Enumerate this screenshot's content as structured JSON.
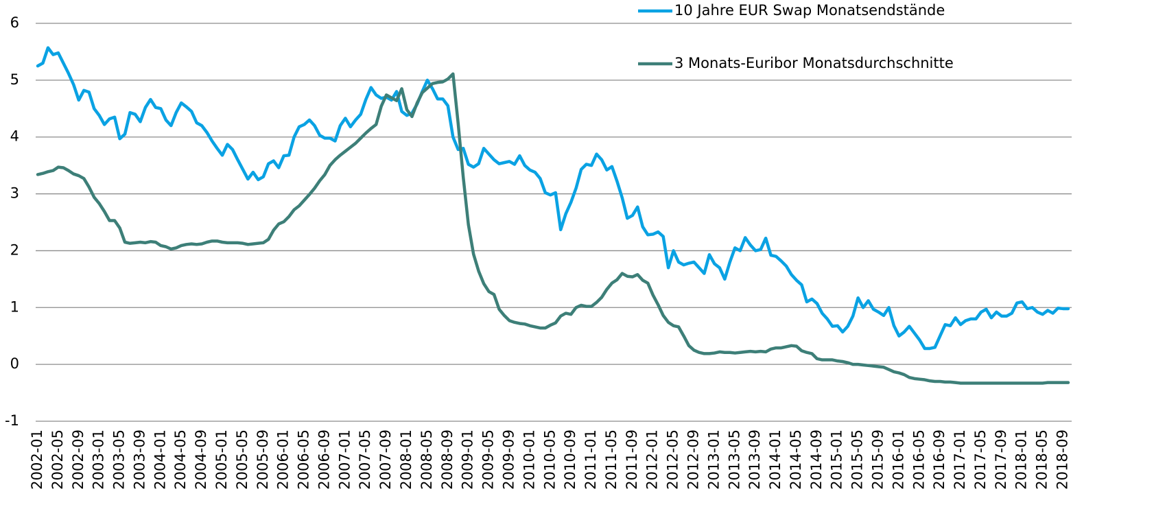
{
  "chart_data": {
    "type": "line",
    "categories": [
      "2002-01",
      null,
      null,
      null,
      "2002-05",
      null,
      null,
      null,
      "2002-09",
      null,
      null,
      null,
      "2003-01",
      null,
      null,
      null,
      "2003-05",
      null,
      null,
      null,
      "2003-09",
      null,
      null,
      null,
      "2004-01",
      null,
      null,
      null,
      "2004-05",
      null,
      null,
      null,
      "2004-09",
      null,
      null,
      null,
      "2005-01",
      null,
      null,
      null,
      "2005-05",
      null,
      null,
      null,
      "2005-09",
      null,
      null,
      null,
      "2006-01",
      null,
      null,
      null,
      "2006-05",
      null,
      null,
      null,
      "2006-09",
      null,
      null,
      null,
      "2007-01",
      null,
      null,
      null,
      "2007-05",
      null,
      null,
      null,
      "2007-09",
      null,
      null,
      null,
      "2008-01",
      null,
      null,
      null,
      "2008-05",
      null,
      null,
      null,
      "2008-09",
      null,
      null,
      null,
      "2009-01",
      null,
      null,
      null,
      "2009-05",
      null,
      null,
      null,
      "2009-09",
      null,
      null,
      null,
      "2010-01",
      null,
      null,
      null,
      "2010-05",
      null,
      null,
      null,
      "2010-09",
      null,
      null,
      null,
      "2011-01",
      null,
      null,
      null,
      "2011-05",
      null,
      null,
      null,
      "2011-09",
      null,
      null,
      null,
      "2012-01",
      null,
      null,
      null,
      "2012-05",
      null,
      null,
      null,
      "2012-09",
      null,
      null,
      null,
      "2013-01",
      null,
      null,
      null,
      "2013-05",
      null,
      null,
      null,
      "2013-09",
      null,
      null,
      null,
      "2014-01",
      null,
      null,
      null,
      "2014-05",
      null,
      null,
      null,
      "2014-09",
      null,
      null,
      null,
      "2015-01",
      null,
      null,
      null,
      "2015-05",
      null,
      null,
      null,
      "2015-09",
      null,
      null,
      null,
      "2016-01",
      null,
      null,
      null,
      "2016-05",
      null,
      null,
      null,
      "2016-09",
      null,
      null,
      null,
      "2017-01",
      null,
      null,
      null,
      "2017-05",
      null,
      null,
      null,
      "2017-09",
      null,
      null,
      null,
      "2018-01",
      null,
      null,
      null,
      "2018-05",
      null,
      null,
      null,
      "2018-09",
      null
    ],
    "series": [
      {
        "name": "10 Jahre EUR Swap Monatsendstände",
        "color": "#0aa2e3",
        "values": [
          5.25,
          5.3,
          5.57,
          5.45,
          5.48,
          5.3,
          5.12,
          4.92,
          4.65,
          4.82,
          4.79,
          4.5,
          4.38,
          4.22,
          4.32,
          4.35,
          3.97,
          4.05,
          4.43,
          4.4,
          4.27,
          4.52,
          4.66,
          4.52,
          4.5,
          4.3,
          4.2,
          4.43,
          4.6,
          4.53,
          4.45,
          4.25,
          4.2,
          4.08,
          3.93,
          3.8,
          3.68,
          3.87,
          3.78,
          3.6,
          3.43,
          3.26,
          3.38,
          3.25,
          3.3,
          3.53,
          3.58,
          3.46,
          3.67,
          3.68,
          4.0,
          4.18,
          4.22,
          4.3,
          4.2,
          4.03,
          3.98,
          3.98,
          3.93,
          4.2,
          4.33,
          4.18,
          4.3,
          4.4,
          4.66,
          4.87,
          4.74,
          4.68,
          4.7,
          4.65,
          4.8,
          4.45,
          4.38,
          4.42,
          4.58,
          4.8,
          5.0,
          4.85,
          4.67,
          4.67,
          4.55,
          4.0,
          3.78,
          3.8,
          3.52,
          3.47,
          3.53,
          3.8,
          3.7,
          3.6,
          3.53,
          3.55,
          3.57,
          3.52,
          3.67,
          3.5,
          3.42,
          3.38,
          3.27,
          3.02,
          2.98,
          3.02,
          2.37,
          2.65,
          2.85,
          3.1,
          3.43,
          3.52,
          3.5,
          3.7,
          3.6,
          3.42,
          3.48,
          3.22,
          2.93,
          2.57,
          2.62,
          2.77,
          2.42,
          2.28,
          2.29,
          2.33,
          2.25,
          1.7,
          2.0,
          1.8,
          1.75,
          1.78,
          1.8,
          1.7,
          1.6,
          1.93,
          1.77,
          1.7,
          1.5,
          1.8,
          2.05,
          2.0,
          2.23,
          2.1,
          2.0,
          2.02,
          2.22,
          1.92,
          1.9,
          1.82,
          1.73,
          1.58,
          1.48,
          1.4,
          1.1,
          1.15,
          1.07,
          0.9,
          0.8,
          0.67,
          0.68,
          0.57,
          0.67,
          0.85,
          1.17,
          1.0,
          1.12,
          0.97,
          0.92,
          0.86,
          1.0,
          0.68,
          0.5,
          0.57,
          0.67,
          0.55,
          0.43,
          0.28,
          0.28,
          0.3,
          0.5,
          0.7,
          0.68,
          0.82,
          0.7,
          0.77,
          0.8,
          0.8,
          0.92,
          0.97,
          0.82,
          0.92,
          0.85,
          0.85,
          0.9,
          1.08,
          1.1,
          0.98,
          1.0,
          0.92,
          0.88,
          0.95,
          0.9,
          0.99,
          0.98,
          0.98
        ]
      },
      {
        "name": "3 Monats-Euribor Monatsdurchschnitte",
        "color": "#3d7f78",
        "values": [
          3.34,
          3.36,
          3.39,
          3.41,
          3.47,
          3.46,
          3.41,
          3.35,
          3.32,
          3.27,
          3.12,
          2.94,
          2.83,
          2.69,
          2.53,
          2.53,
          2.4,
          2.15,
          2.13,
          2.14,
          2.15,
          2.14,
          2.16,
          2.15,
          2.09,
          2.07,
          2.03,
          2.05,
          2.09,
          2.11,
          2.12,
          2.11,
          2.12,
          2.15,
          2.17,
          2.17,
          2.15,
          2.14,
          2.14,
          2.14,
          2.13,
          2.11,
          2.12,
          2.13,
          2.14,
          2.2,
          2.36,
          2.47,
          2.51,
          2.6,
          2.72,
          2.79,
          2.89,
          2.99,
          3.1,
          3.23,
          3.34,
          3.5,
          3.6,
          3.68,
          3.75,
          3.82,
          3.89,
          3.98,
          4.07,
          4.15,
          4.22,
          4.54,
          4.74,
          4.69,
          4.64,
          4.85,
          4.48,
          4.36,
          4.6,
          4.78,
          4.86,
          4.94,
          4.96,
          4.97,
          5.02,
          5.11,
          4.24,
          3.29,
          2.46,
          1.94,
          1.64,
          1.42,
          1.28,
          1.23,
          0.97,
          0.86,
          0.77,
          0.74,
          0.72,
          0.71,
          0.68,
          0.66,
          0.64,
          0.64,
          0.69,
          0.73,
          0.85,
          0.9,
          0.88,
          1.0,
          1.04,
          1.02,
          1.02,
          1.09,
          1.18,
          1.32,
          1.43,
          1.49,
          1.6,
          1.55,
          1.54,
          1.58,
          1.48,
          1.43,
          1.22,
          1.05,
          0.86,
          0.74,
          0.68,
          0.66,
          0.5,
          0.33,
          0.25,
          0.21,
          0.19,
          0.19,
          0.2,
          0.22,
          0.21,
          0.21,
          0.2,
          0.21,
          0.22,
          0.23,
          0.22,
          0.23,
          0.22,
          0.27,
          0.29,
          0.29,
          0.31,
          0.33,
          0.32,
          0.24,
          0.21,
          0.19,
          0.1,
          0.08,
          0.08,
          0.08,
          0.06,
          0.05,
          0.03,
          0.0,
          0.0,
          -0.01,
          -0.02,
          -0.03,
          -0.04,
          -0.05,
          -0.09,
          -0.13,
          -0.15,
          -0.18,
          -0.23,
          -0.25,
          -0.26,
          -0.27,
          -0.29,
          -0.3,
          -0.3,
          -0.31,
          -0.31,
          -0.32,
          -0.33,
          -0.33,
          -0.33,
          -0.33,
          -0.33,
          -0.33,
          -0.33,
          -0.33,
          -0.33,
          -0.33,
          -0.33,
          -0.33,
          -0.33,
          -0.33,
          -0.33,
          -0.33,
          -0.33,
          -0.32,
          -0.32,
          -0.32,
          -0.32,
          -0.32
        ]
      }
    ],
    "ylim": [
      -1,
      6
    ],
    "yticks": [
      -1,
      0,
      1,
      2,
      3,
      4,
      5,
      6
    ],
    "grid": true,
    "legend": "top-right"
  }
}
